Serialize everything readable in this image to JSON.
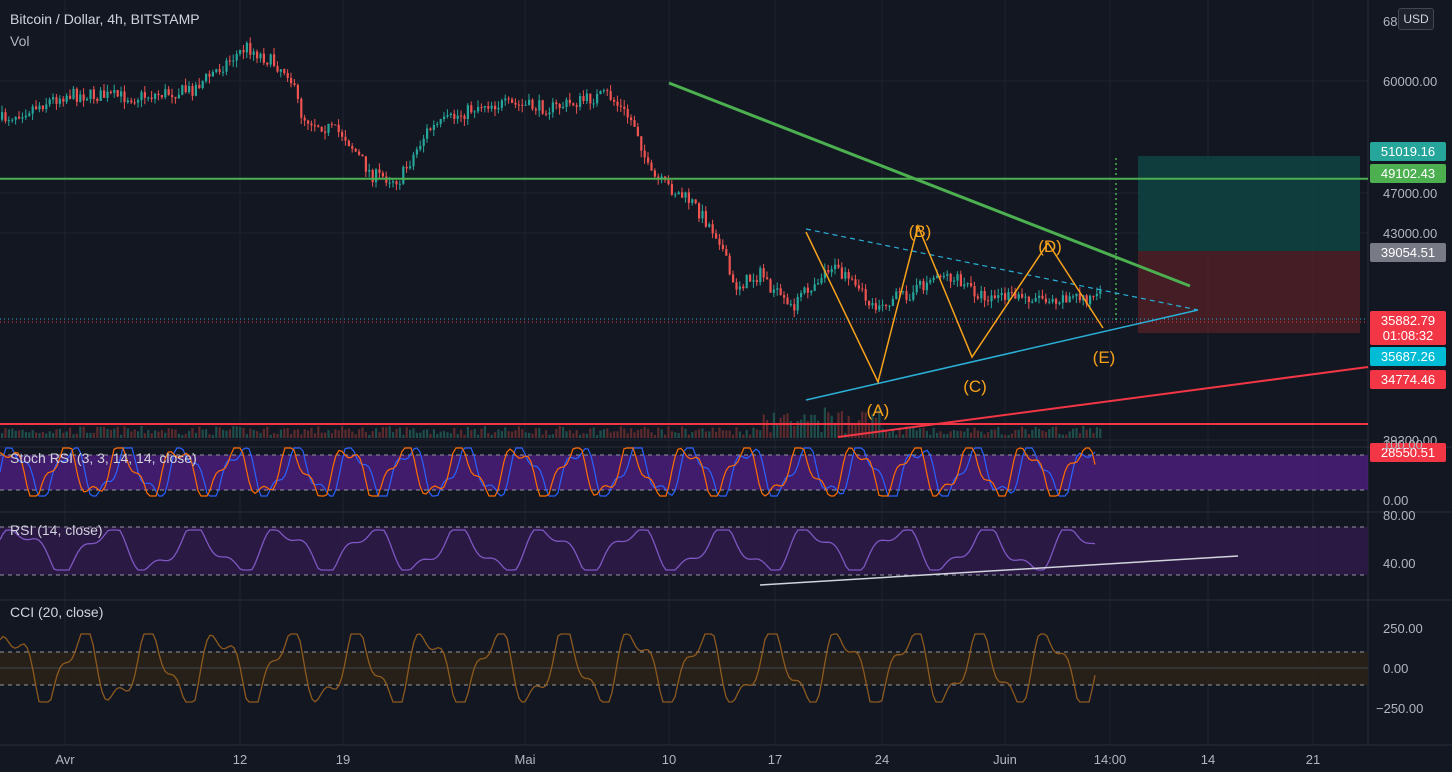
{
  "header": {
    "title": "Bitcoin / Dollar, 4h, BITSTAMP",
    "volume_label": "Vol",
    "currency_button": "USD"
  },
  "colors": {
    "background": "#131722",
    "grid": "#1f2330",
    "candle_up": "#26a69a",
    "candle_down": "#ef5350",
    "trend_green": "#4caf50",
    "support_red": "#f23645",
    "wave_orange": "#f7a21b",
    "triangle_blue": "#2ab0d8",
    "stoch_band": "#4a1d7a",
    "rsi_band": "#2e1a47",
    "cci_band": "#2a2118",
    "rsi_line": "#7e57c2",
    "cci_line": "#8d5a1e",
    "stoch_k": "#2962ff",
    "stoch_d": "#ff6d00"
  },
  "price_axis": {
    "ticks": [
      "60000.00",
      "47000.00",
      "43000.00",
      "39200.00"
    ],
    "top_cut_label": "68",
    "labels": [
      {
        "value": "51019.16",
        "color": "#26a69a"
      },
      {
        "value": "49102.43",
        "color": "#4caf50"
      },
      {
        "value": "39054.51",
        "color": "#787b86"
      },
      {
        "value": "35882.79",
        "sub": "01:08:32",
        "color": "#f23645"
      },
      {
        "value": "35687.26",
        "color": "#00bcd4"
      },
      {
        "value": "34774.46",
        "color": "#f23645"
      },
      {
        "value": "28550.51",
        "color": "#f23645"
      }
    ]
  },
  "time_axis": {
    "labels": [
      "Avr",
      "12",
      "19",
      "Mai",
      "10",
      "17",
      "24",
      "Juin",
      "14:00",
      "14",
      "21"
    ]
  },
  "wave_labels": [
    "(A)",
    "(B)",
    "(C)",
    "(D)",
    "(E)"
  ],
  "indicators": {
    "stoch": {
      "label": "Stoch RSI (3, 3, 14, 14, close)",
      "ticks": [
        "100.00",
        "0.00"
      ]
    },
    "rsi": {
      "label": "RSI (14, close)",
      "ticks": [
        "80.00",
        "40.00"
      ]
    },
    "cci": {
      "label": "CCI (20, close)",
      "ticks": [
        "250.00",
        "0.00",
        "−250.00"
      ]
    }
  },
  "chart_data": {
    "type": "candlestick",
    "title": "Bitcoin / Dollar, 4h, BITSTAMP",
    "symbol": "BTC/USD",
    "interval": "4h",
    "exchange": "BITSTAMP",
    "close_price": 35882.79,
    "countdown": "01:08:32",
    "horizontal_levels": [
      49102.43,
      28550.51
    ],
    "position_tool": {
      "target": 51019.16,
      "entry": 35882.79,
      "stop": 39054.51
    },
    "price_path": [
      {
        "date": "2021-03-27",
        "price": 55500
      },
      {
        "date": "2021-04-01",
        "price": 58500
      },
      {
        "date": "2021-04-06",
        "price": 58200
      },
      {
        "date": "2021-04-10",
        "price": 59000
      },
      {
        "date": "2021-04-14",
        "price": 63800
      },
      {
        "date": "2021-04-17",
        "price": 61000
      },
      {
        "date": "2021-04-18",
        "price": 56000
      },
      {
        "date": "2021-04-21",
        "price": 54000
      },
      {
        "date": "2021-04-23",
        "price": 49500
      },
      {
        "date": "2021-04-25",
        "price": 49000
      },
      {
        "date": "2021-04-27",
        "price": 54500
      },
      {
        "date": "2021-05-01",
        "price": 57500
      },
      {
        "date": "2021-05-06",
        "price": 57000
      },
      {
        "date": "2021-05-10",
        "price": 58500
      },
      {
        "date": "2021-05-12",
        "price": 55000
      },
      {
        "date": "2021-05-13",
        "price": 49500
      },
      {
        "date": "2021-05-16",
        "price": 46500
      },
      {
        "date": "2021-05-18",
        "price": 42500
      },
      {
        "date": "2021-05-19",
        "price": 37000
      },
      {
        "date": "2021-05-21",
        "price": 38500
      },
      {
        "date": "2021-05-23",
        "price": 34500
      },
      {
        "date": "2021-05-26",
        "price": 39500
      },
      {
        "date": "2021-05-29",
        "price": 35000
      },
      {
        "date": "2021-06-01",
        "price": 36500
      },
      {
        "date": "2021-06-03",
        "price": 38700
      },
      {
        "date": "2021-06-06",
        "price": 36000
      },
      {
        "date": "2021-06-08",
        "price": 35883
      }
    ]
  }
}
